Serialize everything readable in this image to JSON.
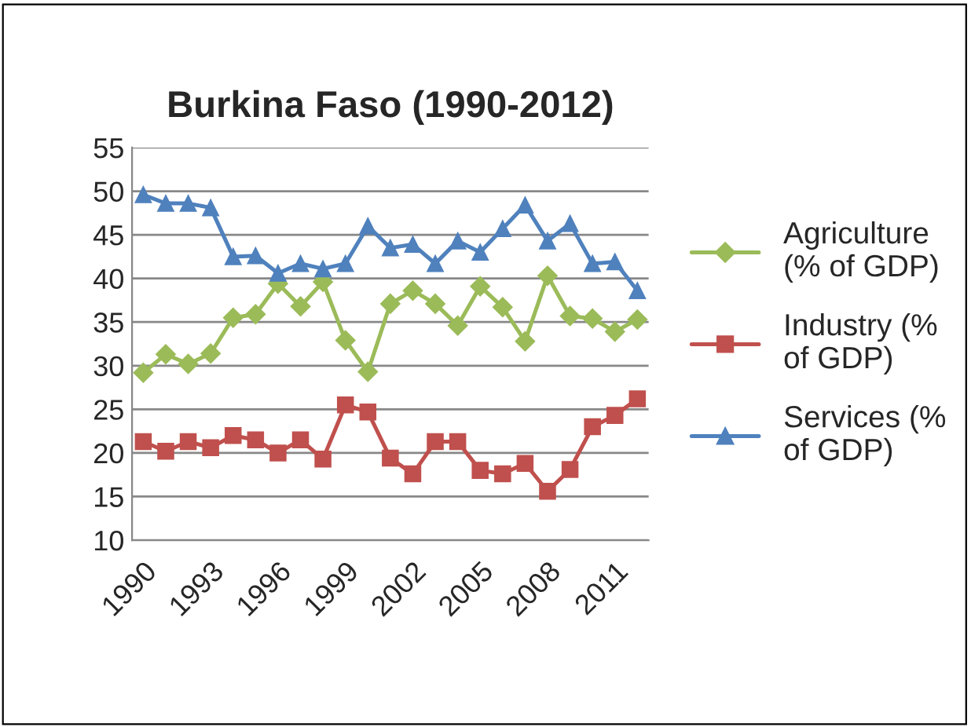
{
  "chart_data": {
    "type": "line",
    "title": "Burkina Faso (1990-2012)",
    "categories": [
      "1990",
      null,
      null,
      "1993",
      null,
      null,
      "1996",
      null,
      null,
      "1999",
      null,
      null,
      "2002",
      null,
      null,
      "2005",
      null,
      null,
      "2008",
      null,
      null,
      "2011",
      null
    ],
    "series": [
      {
        "name": "Agriculture\n(% of GDP)",
        "color": "#9bbb59",
        "marker": "diamond",
        "values": [
          29.2,
          31.3,
          30.2,
          31.4,
          35.5,
          35.9,
          39.4,
          36.8,
          39.6,
          32.9,
          29.3,
          37.1,
          38.6,
          37.1,
          34.6,
          39.1,
          36.7,
          32.8,
          40.3,
          35.7,
          35.4,
          33.9,
          35.3
        ]
      },
      {
        "name": "Industry (%\nof GDP)",
        "color": "#c0504d",
        "marker": "square",
        "values": [
          21.3,
          20.2,
          21.3,
          20.6,
          22.0,
          21.5,
          20.0,
          21.5,
          19.3,
          25.5,
          24.7,
          19.4,
          17.6,
          21.3,
          21.3,
          18.0,
          17.6,
          18.8,
          15.6,
          18.1,
          23.0,
          24.3,
          26.2
        ]
      },
      {
        "name": "Services (%\nof GDP)",
        "color": "#4f81bd",
        "marker": "triangle",
        "values": [
          49.6,
          48.6,
          48.6,
          48.1,
          42.5,
          42.6,
          40.6,
          41.7,
          41.1,
          41.7,
          46.0,
          43.5,
          43.9,
          41.7,
          44.3,
          43.0,
          45.7,
          48.4,
          44.3,
          46.3,
          41.7,
          41.9,
          38.6
        ]
      }
    ],
    "ylim": [
      10,
      55
    ],
    "yticks": [
      10,
      15,
      20,
      25,
      30,
      35,
      40,
      45,
      50,
      55
    ],
    "grid": "y",
    "legend": "right"
  }
}
